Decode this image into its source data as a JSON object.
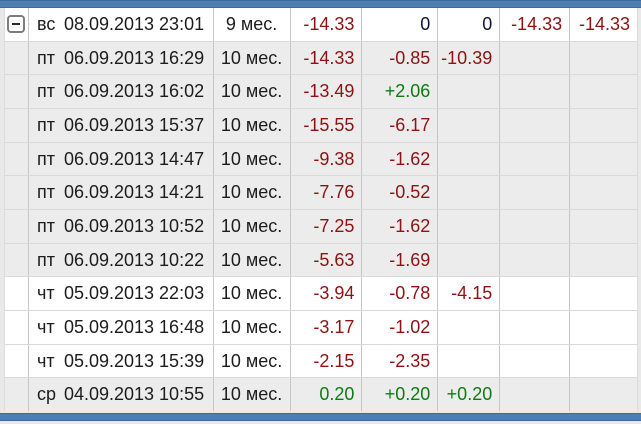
{
  "colors": {
    "negative": "#8e1212",
    "positive": "#0c7c10",
    "zero": "#10103c",
    "bar": "#4d80b0",
    "bar_border": "#3a6b99",
    "row_alt": "#ececec",
    "grid_line": "#c6c6c6",
    "row_line": "#d9d9d9",
    "text": "#1c1c1c"
  },
  "expand_button": {
    "icon": "minus-icon",
    "state": "expanded"
  },
  "rows": [
    {
      "day": "вс",
      "datetime": "08.09.2013 23:01",
      "duration": "9 мес.",
      "values": [
        "-14.33",
        "0",
        "0",
        "-14.33",
        "-14.33"
      ],
      "band": "white",
      "expandable": true
    },
    {
      "day": "пт",
      "datetime": "06.09.2013 16:29",
      "duration": "10 мес.",
      "values": [
        "-14.33",
        "-0.85",
        "-10.39",
        "",
        ""
      ],
      "band": "alt",
      "expandable": false
    },
    {
      "day": "пт",
      "datetime": "06.09.2013 16:02",
      "duration": "10 мес.",
      "values": [
        "-13.49",
        "+2.06",
        "",
        "",
        ""
      ],
      "band": "alt",
      "expandable": false
    },
    {
      "day": "пт",
      "datetime": "06.09.2013 15:37",
      "duration": "10 мес.",
      "values": [
        "-15.55",
        "-6.17",
        "",
        "",
        ""
      ],
      "band": "alt",
      "expandable": false
    },
    {
      "day": "пт",
      "datetime": "06.09.2013 14:47",
      "duration": "10 мес.",
      "values": [
        "-9.38",
        "-1.62",
        "",
        "",
        ""
      ],
      "band": "alt",
      "expandable": false
    },
    {
      "day": "пт",
      "datetime": "06.09.2013 14:21",
      "duration": "10 мес.",
      "values": [
        "-7.76",
        "-0.52",
        "",
        "",
        ""
      ],
      "band": "alt",
      "expandable": false
    },
    {
      "day": "пт",
      "datetime": "06.09.2013 10:52",
      "duration": "10 мес.",
      "values": [
        "-7.25",
        "-1.62",
        "",
        "",
        ""
      ],
      "band": "alt",
      "expandable": false
    },
    {
      "day": "пт",
      "datetime": "06.09.2013 10:22",
      "duration": "10 мес.",
      "values": [
        "-5.63",
        "-1.69",
        "",
        "",
        ""
      ],
      "band": "alt",
      "expandable": false
    },
    {
      "day": "чт",
      "datetime": "05.09.2013 22:03",
      "duration": "10 мес.",
      "values": [
        "-3.94",
        "-0.78",
        "-4.15",
        "",
        ""
      ],
      "band": "white",
      "expandable": false
    },
    {
      "day": "чт",
      "datetime": "05.09.2013 16:48",
      "duration": "10 мес.",
      "values": [
        "-3.17",
        "-1.02",
        "",
        "",
        ""
      ],
      "band": "white",
      "expandable": false
    },
    {
      "day": "чт",
      "datetime": "05.09.2013 15:39",
      "duration": "10 мес.",
      "values": [
        "-2.15",
        "-2.35",
        "",
        "",
        ""
      ],
      "band": "white",
      "expandable": false
    },
    {
      "day": "ср",
      "datetime": "04.09.2013 10:55",
      "duration": "10 мес.",
      "values": [
        "0.20",
        "+0.20",
        "+0.20",
        "",
        ""
      ],
      "band": "alt",
      "expandable": false
    }
  ]
}
